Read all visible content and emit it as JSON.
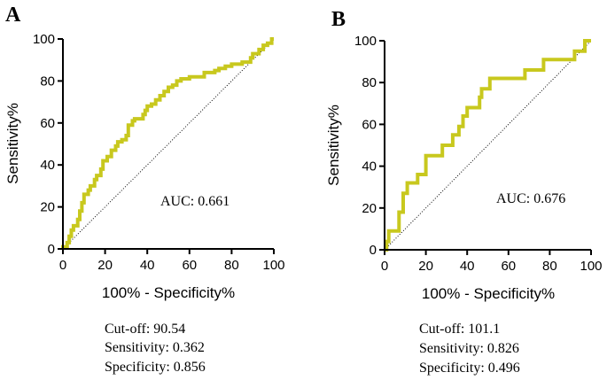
{
  "chart_data": [
    {
      "panel": "A",
      "type": "line",
      "xlabel": "100% - Specificity%",
      "ylabel": "Sensitivity%",
      "xlim": [
        0,
        100
      ],
      "ylim": [
        0,
        100
      ],
      "xticks": [
        "0",
        "20",
        "40",
        "60",
        "80",
        "100"
      ],
      "yticks": [
        "0",
        "20",
        "40",
        "60",
        "80",
        "100"
      ],
      "line_color": "#c8c81e",
      "reference_line": "diagonal dotted",
      "auc_label": "AUC: 0.661",
      "stats": [
        "Cut-off: 90.54",
        "Sensitivity: 0.362",
        "Specificity: 0.856"
      ],
      "roc": [
        [
          0,
          0
        ],
        [
          0,
          1
        ],
        [
          2,
          1
        ],
        [
          2,
          3
        ],
        [
          3,
          3
        ],
        [
          3,
          6
        ],
        [
          4,
          6
        ],
        [
          4,
          9
        ],
        [
          5,
          9
        ],
        [
          5,
          11
        ],
        [
          7,
          11
        ],
        [
          7,
          14
        ],
        [
          8,
          14
        ],
        [
          8,
          18
        ],
        [
          9,
          18
        ],
        [
          9,
          22
        ],
        [
          10,
          22
        ],
        [
          10,
          26
        ],
        [
          12,
          26
        ],
        [
          12,
          28
        ],
        [
          13,
          28
        ],
        [
          13,
          30
        ],
        [
          15,
          30
        ],
        [
          15,
          33
        ],
        [
          16,
          33
        ],
        [
          16,
          35
        ],
        [
          18,
          35
        ],
        [
          18,
          38
        ],
        [
          19,
          38
        ],
        [
          19,
          42
        ],
        [
          21,
          42
        ],
        [
          21,
          44
        ],
        [
          23,
          44
        ],
        [
          23,
          47
        ],
        [
          25,
          47
        ],
        [
          25,
          49
        ],
        [
          26,
          49
        ],
        [
          26,
          51
        ],
        [
          28,
          51
        ],
        [
          28,
          52
        ],
        [
          30,
          52
        ],
        [
          30,
          54
        ],
        [
          31,
          54
        ],
        [
          31,
          59
        ],
        [
          33,
          59
        ],
        [
          33,
          61
        ],
        [
          34,
          61
        ],
        [
          34,
          62
        ],
        [
          38,
          62
        ],
        [
          38,
          64
        ],
        [
          39,
          64
        ],
        [
          39,
          66
        ],
        [
          40,
          66
        ],
        [
          40,
          68
        ],
        [
          42,
          68
        ],
        [
          42,
          69
        ],
        [
          44,
          69
        ],
        [
          44,
          71
        ],
        [
          46,
          71
        ],
        [
          46,
          73
        ],
        [
          48,
          73
        ],
        [
          48,
          75
        ],
        [
          50,
          75
        ],
        [
          50,
          77
        ],
        [
          52,
          77
        ],
        [
          52,
          78
        ],
        [
          54,
          78
        ],
        [
          54,
          80
        ],
        [
          56,
          80
        ],
        [
          56,
          81
        ],
        [
          60,
          81
        ],
        [
          60,
          82
        ],
        [
          67,
          82
        ],
        [
          67,
          84
        ],
        [
          72,
          84
        ],
        [
          72,
          85
        ],
        [
          74,
          85
        ],
        [
          74,
          86
        ],
        [
          77,
          86
        ],
        [
          77,
          87
        ],
        [
          80,
          87
        ],
        [
          80,
          88
        ],
        [
          85,
          88
        ],
        [
          85,
          89
        ],
        [
          89,
          89
        ],
        [
          89,
          91
        ],
        [
          90,
          91
        ],
        [
          90,
          93
        ],
        [
          93,
          93
        ],
        [
          93,
          95
        ],
        [
          95,
          95
        ],
        [
          95,
          97
        ],
        [
          97,
          97
        ],
        [
          97,
          98
        ],
        [
          99,
          98
        ],
        [
          99,
          100
        ],
        [
          100,
          100
        ]
      ]
    },
    {
      "panel": "B",
      "type": "line",
      "xlabel": "100% - Specificity%",
      "ylabel": "Sensitivity%",
      "xlim": [
        0,
        100
      ],
      "ylim": [
        0,
        100
      ],
      "xticks": [
        "0",
        "20",
        "40",
        "60",
        "80",
        "100"
      ],
      "yticks": [
        "0",
        "20",
        "40",
        "60",
        "80",
        "100"
      ],
      "line_color": "#c8c81e",
      "reference_line": "diagonal dotted",
      "auc_label": "AUC: 0.676",
      "stats": [
        "Cut-off: 101.1",
        "Sensitivity: 0.826",
        "Specificity: 0.496"
      ],
      "roc": [
        [
          0,
          0
        ],
        [
          1,
          0
        ],
        [
          1,
          4
        ],
        [
          2,
          4
        ],
        [
          2,
          9
        ],
        [
          7,
          9
        ],
        [
          7,
          18
        ],
        [
          9,
          18
        ],
        [
          9,
          27
        ],
        [
          11,
          27
        ],
        [
          11,
          32
        ],
        [
          16,
          32
        ],
        [
          16,
          36
        ],
        [
          20,
          36
        ],
        [
          20,
          45
        ],
        [
          28,
          45
        ],
        [
          28,
          50
        ],
        [
          33,
          50
        ],
        [
          33,
          55
        ],
        [
          36,
          55
        ],
        [
          36,
          59
        ],
        [
          38,
          59
        ],
        [
          38,
          64
        ],
        [
          40,
          64
        ],
        [
          40,
          68
        ],
        [
          46,
          68
        ],
        [
          46,
          73
        ],
        [
          47,
          73
        ],
        [
          47,
          77
        ],
        [
          51,
          77
        ],
        [
          51,
          82
        ],
        [
          68,
          82
        ],
        [
          68,
          86
        ],
        [
          77,
          86
        ],
        [
          77,
          91
        ],
        [
          92,
          91
        ],
        [
          92,
          95
        ],
        [
          97,
          95
        ],
        [
          97,
          100
        ],
        [
          100,
          100
        ]
      ]
    }
  ]
}
